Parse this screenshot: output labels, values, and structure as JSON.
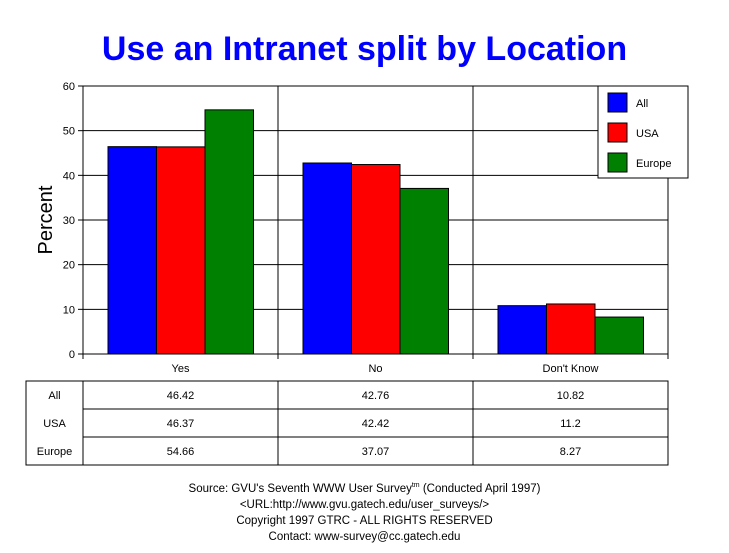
{
  "chart_data": {
    "type": "bar",
    "title": "Use an Intranet split by Location",
    "ylabel": "Percent",
    "xlabel": "",
    "ylim": [
      0,
      60
    ],
    "yticks": [
      0,
      10,
      20,
      30,
      40,
      50,
      60
    ],
    "grid": true,
    "legend_position": "top-right",
    "categories": [
      "Yes",
      "No",
      "Don't Know"
    ],
    "series": [
      {
        "name": "All",
        "color": "#0000ff",
        "values": [
          46.42,
          42.76,
          10.82
        ]
      },
      {
        "name": "USA",
        "color": "#ff0000",
        "values": [
          46.37,
          42.42,
          11.2
        ]
      },
      {
        "name": "Europe",
        "color": "#008000",
        "values": [
          54.66,
          37.07,
          8.27
        ]
      }
    ],
    "table": {
      "rows": [
        {
          "label": "All",
          "cells": [
            "46.42",
            "42.76",
            "10.82"
          ]
        },
        {
          "label": "USA",
          "cells": [
            "46.37",
            "42.42",
            "11.2"
          ]
        },
        {
          "label": "Europe",
          "cells": [
            "54.66",
            "37.07",
            "8.27"
          ]
        }
      ]
    }
  },
  "footer": {
    "line1_pre": "Source: GVU's Seventh WWW User Survey",
    "line1_sup": "tm",
    "line1_post": " (Conducted April 1997)",
    "line2": "<URL:http://www.gvu.gatech.edu/user_surveys/>",
    "line3": "Copyright 1997 GTRC - ALL RIGHTS RESERVED",
    "line4": "Contact: www-survey@cc.gatech.edu"
  }
}
